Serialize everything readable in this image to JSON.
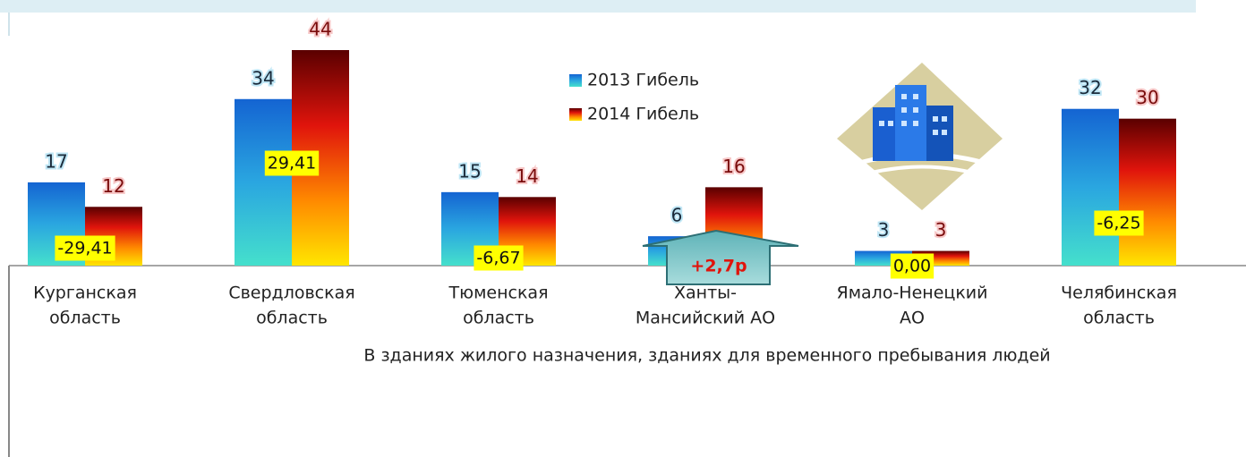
{
  "chart_data": {
    "type": "bar",
    "title": "В зданиях жилого назначения, зданиях для временного пребывания людей",
    "categories": [
      [
        "Курганская",
        "область"
      ],
      [
        "Свердловская",
        "область"
      ],
      [
        "Тюменская",
        "область"
      ],
      [
        "Ханты-",
        "Мансийский АО"
      ],
      [
        "Ямало-Ненецкий",
        "АО"
      ],
      [
        "Челябинская",
        "область"
      ]
    ],
    "series": [
      {
        "name": "2013 Гибель",
        "color": "#1a73d9",
        "values": [
          17,
          34,
          15,
          6,
          3,
          32
        ]
      },
      {
        "name": "2014 Гибель",
        "color": "#e0140c",
        "values": [
          12,
          44,
          14,
          16,
          3,
          30
        ]
      }
    ],
    "changes": {
      "values": [
        -29.41,
        29.41,
        -6.67,
        2.7,
        0,
        -6.25
      ],
      "value_labels": [
        "-29,41",
        "29,41",
        "-6,67",
        "+2,7р",
        "0,00",
        "-6,25"
      ]
    }
  }
}
